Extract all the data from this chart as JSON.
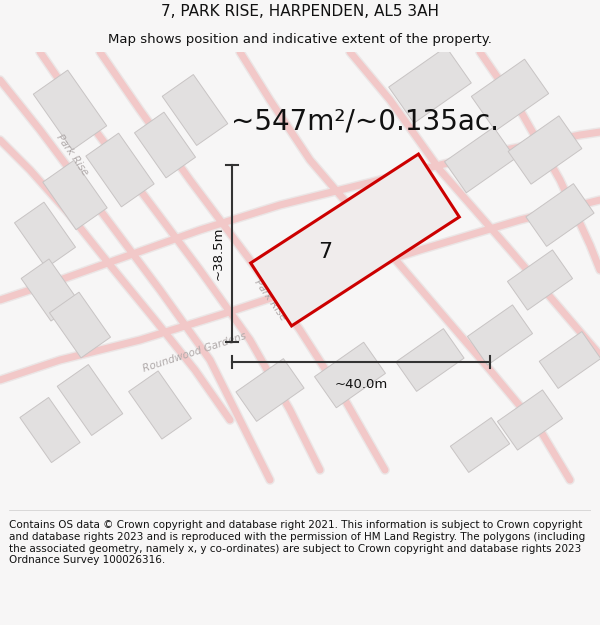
{
  "title": "7, PARK RISE, HARPENDEN, AL5 3AH",
  "subtitle": "Map shows position and indicative extent of the property.",
  "area_text": "~547m²/~0.135ac.",
  "label_number": "7",
  "dim_width": "~40.0m",
  "dim_height": "~38.5m",
  "footer": "Contains OS data © Crown copyright and database right 2021. This information is subject to Crown copyright and database rights 2023 and is reproduced with the permission of HM Land Registry. The polygons (including the associated geometry, namely x, y co-ordinates) are subject to Crown copyright and database rights 2023 Ordnance Survey 100026316.",
  "bg_color": "#f7f6f6",
  "map_bg": "#f0efef",
  "road_color": "#f2c8c8",
  "road_outline": "#e8e0e0",
  "building_fill": "#e2e0e0",
  "building_stroke": "#c8c4c4",
  "plot_stroke": "#cc0000",
  "plot_fill": "#f0ecec",
  "dim_line_color": "#333333",
  "text_color": "#111111",
  "road_label_color": "#b0aaaa",
  "title_fontsize": 11,
  "subtitle_fontsize": 9.5,
  "area_fontsize": 20,
  "number_fontsize": 16,
  "dim_fontsize": 9.5,
  "footer_fontsize": 7.5,
  "road_lw": 5
}
